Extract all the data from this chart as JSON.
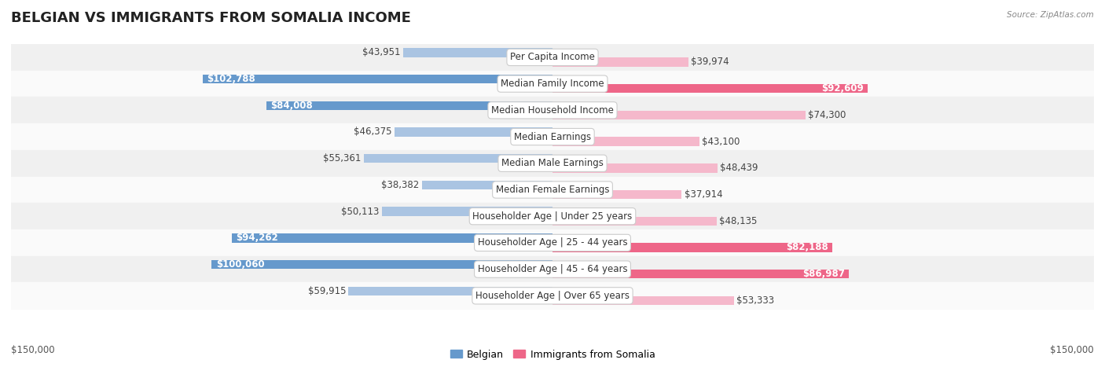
{
  "title": "BELGIAN VS IMMIGRANTS FROM SOMALIA INCOME",
  "source": "Source: ZipAtlas.com",
  "categories": [
    "Per Capita Income",
    "Median Family Income",
    "Median Household Income",
    "Median Earnings",
    "Median Male Earnings",
    "Median Female Earnings",
    "Householder Age | Under 25 years",
    "Householder Age | 25 - 44 years",
    "Householder Age | 45 - 64 years",
    "Householder Age | Over 65 years"
  ],
  "belgian_values": [
    43951,
    102788,
    84008,
    46375,
    55361,
    38382,
    50113,
    94262,
    100060,
    59915
  ],
  "somalia_values": [
    39974,
    92609,
    74300,
    43100,
    48439,
    37914,
    48135,
    82188,
    86987,
    53333
  ],
  "belgian_labels": [
    "$43,951",
    "$102,788",
    "$84,008",
    "$46,375",
    "$55,361",
    "$38,382",
    "$50,113",
    "$94,262",
    "$100,060",
    "$59,915"
  ],
  "somalia_labels": [
    "$39,974",
    "$92,609",
    "$74,300",
    "$43,100",
    "$48,439",
    "$37,914",
    "$48,135",
    "$82,188",
    "$86,987",
    "$53,333"
  ],
  "belgian_color_light": "#aac4e2",
  "belgian_color_dark": "#6699cc",
  "somalia_color_light": "#f5b8cb",
  "somalia_color_dark": "#ee6688",
  "axis_limit": 150000,
  "background_color": "#ffffff",
  "row_bg_even": "#f0f0f0",
  "row_bg_odd": "#fafafa",
  "row_separator": "#d8d8d8",
  "legend_belgian": "Belgian",
  "legend_somalia": "Immigrants from Somalia",
  "bottom_left_label": "$150,000",
  "bottom_right_label": "$150,000",
  "title_fontsize": 13,
  "label_fontsize": 8.5,
  "category_fontsize": 8.5,
  "belgian_large_threshold": 75000,
  "somalia_large_threshold": 75000
}
